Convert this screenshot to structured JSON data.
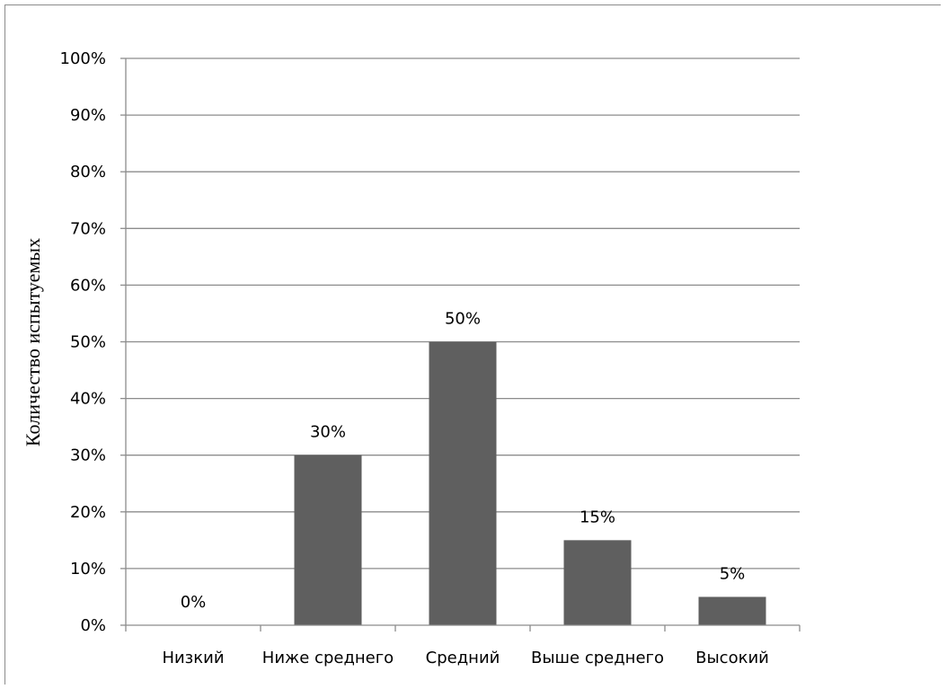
{
  "chart_data": {
    "type": "bar",
    "categories": [
      "Низкий",
      "Ниже среднего",
      "Средний",
      "Выше среднего",
      "Высокий"
    ],
    "values": [
      0,
      30,
      50,
      15,
      5
    ],
    "data_labels": [
      "0%",
      "30%",
      "50%",
      "15%",
      "5%"
    ],
    "ylabel": "Количество испытуемых",
    "xlabel": "",
    "ylim": [
      0,
      100
    ],
    "y_ticks": [
      0,
      10,
      20,
      30,
      40,
      50,
      60,
      70,
      80,
      90,
      100
    ],
    "y_tick_labels": [
      "0%",
      "10%",
      "20%",
      "30%",
      "40%",
      "50%",
      "60%",
      "70%",
      "80%",
      "90%",
      "100%"
    ],
    "grid": true,
    "legend": "none",
    "colors": {
      "bar": "#5f5f5f",
      "grid": "#8c8c8c",
      "axis": "#8c8c8c"
    }
  }
}
